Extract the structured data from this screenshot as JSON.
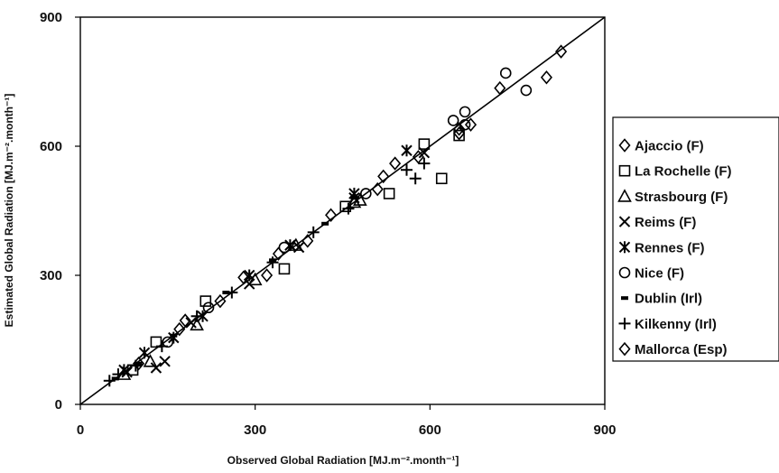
{
  "chart_data": {
    "type": "scatter",
    "title": "",
    "xlabel": "Observed Global Radiation [MJ.m⁻².month⁻¹]",
    "ylabel": "Estimated Global Radiation [MJ.m⁻².month⁻¹]",
    "xlim": [
      0,
      900
    ],
    "ylim": [
      0,
      900
    ],
    "xticks": [
      "0",
      "300",
      "600",
      "900"
    ],
    "yticks": [
      "0",
      "300",
      "600",
      "900"
    ],
    "grid": false,
    "legend_position": "right",
    "reference_line": {
      "from": [
        0,
        0
      ],
      "to": [
        900,
        900
      ]
    },
    "series": [
      {
        "name": "Ajaccio (F)",
        "marker": "diamond",
        "points": [
          [
            100,
            95
          ],
          [
            180,
            195
          ],
          [
            240,
            240
          ],
          [
            340,
            350
          ],
          [
            430,
            440
          ],
          [
            520,
            530
          ],
          [
            580,
            575
          ],
          [
            650,
            630
          ],
          [
            670,
            650
          ]
        ]
      },
      {
        "name": "La Rochelle (F)",
        "marker": "square",
        "points": [
          [
            90,
            80
          ],
          [
            130,
            145
          ],
          [
            215,
            240
          ],
          [
            350,
            315
          ],
          [
            455,
            460
          ],
          [
            530,
            490
          ],
          [
            590,
            605
          ],
          [
            620,
            525
          ],
          [
            650,
            625
          ]
        ]
      },
      {
        "name": "Strasbourg (F)",
        "marker": "triangle",
        "points": [
          [
            75,
            70
          ],
          [
            120,
            100
          ],
          [
            200,
            185
          ],
          [
            300,
            290
          ],
          [
            370,
            370
          ],
          [
            470,
            470
          ],
          [
            480,
            475
          ]
        ]
      },
      {
        "name": "Reims (F)",
        "marker": "x",
        "points": [
          [
            80,
            75
          ],
          [
            130,
            85
          ],
          [
            145,
            100
          ],
          [
            190,
            190
          ],
          [
            290,
            280
          ],
          [
            375,
            365
          ],
          [
            470,
            480
          ],
          [
            590,
            585
          ]
        ]
      },
      {
        "name": "Rennes (F)",
        "marker": "asterisk",
        "points": [
          [
            75,
            80
          ],
          [
            110,
            120
          ],
          [
            160,
            155
          ],
          [
            210,
            205
          ],
          [
            290,
            300
          ],
          [
            360,
            370
          ],
          [
            470,
            490
          ],
          [
            560,
            590
          ]
        ]
      },
      {
        "name": "Nice (F)",
        "marker": "circle",
        "points": [
          [
            150,
            145
          ],
          [
            220,
            225
          ],
          [
            350,
            365
          ],
          [
            490,
            490
          ],
          [
            640,
            660
          ],
          [
            660,
            680
          ],
          [
            660,
            650
          ],
          [
            730,
            770
          ],
          [
            765,
            730
          ]
        ]
      },
      {
        "name": "Dublin (Irl)",
        "marker": "dash",
        "points": [
          [
            60,
            60
          ],
          [
            100,
            95
          ],
          [
            160,
            160
          ],
          [
            250,
            260
          ],
          [
            330,
            335
          ],
          [
            420,
            420
          ],
          [
            470,
            480
          ]
        ]
      },
      {
        "name": "Kilkenny (Irl)",
        "marker": "plus",
        "points": [
          [
            50,
            55
          ],
          [
            65,
            70
          ],
          [
            95,
            90
          ],
          [
            140,
            135
          ],
          [
            200,
            205
          ],
          [
            260,
            260
          ],
          [
            330,
            330
          ],
          [
            400,
            400
          ],
          [
            460,
            455
          ],
          [
            560,
            545
          ],
          [
            575,
            525
          ],
          [
            590,
            560
          ]
        ]
      },
      {
        "name": "Mallorca (Esp)",
        "marker": "diamond",
        "points": [
          [
            170,
            175
          ],
          [
            280,
            295
          ],
          [
            320,
            300
          ],
          [
            390,
            380
          ],
          [
            510,
            500
          ],
          [
            540,
            560
          ],
          [
            650,
            640
          ],
          [
            720,
            735
          ],
          [
            800,
            760
          ],
          [
            825,
            820
          ]
        ]
      }
    ]
  }
}
